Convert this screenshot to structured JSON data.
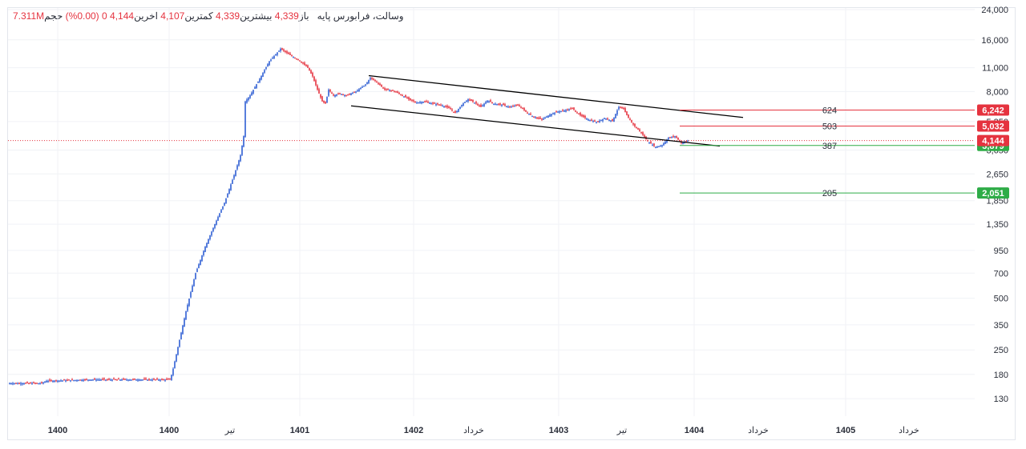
{
  "header": {
    "symbol": "وسالت، فرابورس پایه",
    "open_label": "باز",
    "open_value": "4,339",
    "high_label": "بیشترین",
    "high_value": "4,339",
    "low_label": "کمترین",
    "low_value": "4,107",
    "close_label": "اخرین",
    "close_value": "4,144",
    "change_value": "0 (0.00%)",
    "volume_label": "حجم",
    "volume_value": "7.311M"
  },
  "colors": {
    "up": "#2f5fd3",
    "down": "#e5333f",
    "resistance": "#e5333f",
    "support": "#2eac47",
    "channel": "#000000",
    "last_price_line": "#e5333f"
  },
  "chart_data": {
    "type": "candlestick",
    "y_scale": "log",
    "ylim": [
      105,
      24000
    ],
    "y_ticks": [
      130,
      180,
      250,
      350,
      500,
      700,
      950,
      1350,
      1850,
      2650,
      3650,
      5350,
      8000,
      11000,
      16000,
      24000
    ],
    "y_tick_labels": [
      "130",
      "180",
      "250",
      "350",
      "500",
      "700",
      "950",
      "1,350",
      "1,850",
      "2,650",
      "3,650",
      "5,350",
      "8,000",
      "11,000",
      "16,000",
      "24,000"
    ],
    "x_labels": [
      "1400",
      "1400",
      "تیر",
      "1401",
      "1402",
      "خرداد",
      "1403",
      "تیر",
      "1404",
      "خرداد",
      "1405",
      "خرداد"
    ],
    "x_label_bold": [
      true,
      true,
      false,
      true,
      true,
      false,
      true,
      false,
      true,
      false,
      true,
      false
    ],
    "price_path": [
      [
        0,
        160
      ],
      [
        40,
        160
      ],
      [
        46,
        165
      ],
      [
        100,
        168
      ],
      [
        200,
        168
      ],
      [
        203,
        185
      ],
      [
        210,
        260
      ],
      [
        220,
        420
      ],
      [
        232,
        700
      ],
      [
        244,
        1000
      ],
      [
        256,
        1350
      ],
      [
        268,
        1800
      ],
      [
        280,
        2600
      ],
      [
        288,
        3400
      ],
      [
        292,
        4400
      ],
      [
        294,
        7000
      ],
      [
        300,
        7600
      ],
      [
        312,
        9500
      ],
      [
        324,
        12000
      ],
      [
        334,
        13500
      ],
      [
        338,
        14200
      ],
      [
        348,
        13200
      ],
      [
        360,
        12300
      ],
      [
        372,
        11000
      ],
      [
        378,
        9800
      ],
      [
        384,
        8200
      ],
      [
        390,
        7000
      ],
      [
        394,
        6800
      ],
      [
        398,
        8200
      ],
      [
        404,
        7600
      ],
      [
        412,
        7800
      ],
      [
        420,
        7600
      ],
      [
        432,
        8000
      ],
      [
        444,
        8800
      ],
      [
        450,
        9600
      ],
      [
        458,
        9100
      ],
      [
        468,
        8200
      ],
      [
        478,
        8100
      ],
      [
        488,
        7700
      ],
      [
        498,
        7200
      ],
      [
        508,
        6900
      ],
      [
        518,
        7000
      ],
      [
        528,
        6800
      ],
      [
        538,
        6700
      ],
      [
        548,
        6400
      ],
      [
        556,
        6000
      ],
      [
        564,
        6700
      ],
      [
        572,
        7200
      ],
      [
        580,
        6900
      ],
      [
        588,
        6500
      ],
      [
        596,
        7100
      ],
      [
        604,
        6800
      ],
      [
        614,
        6700
      ],
      [
        624,
        6500
      ],
      [
        634,
        6700
      ],
      [
        644,
        6100
      ],
      [
        654,
        5700
      ],
      [
        664,
        5500
      ],
      [
        672,
        5800
      ],
      [
        682,
        6100
      ],
      [
        692,
        6200
      ],
      [
        702,
        6400
      ],
      [
        712,
        5800
      ],
      [
        722,
        5500
      ],
      [
        732,
        5300
      ],
      [
        742,
        5600
      ],
      [
        752,
        5400
      ],
      [
        760,
        6500
      ],
      [
        766,
        6300
      ],
      [
        772,
        5600
      ],
      [
        780,
        5000
      ],
      [
        788,
        4600
      ],
      [
        796,
        4100
      ],
      [
        806,
        3800
      ],
      [
        814,
        3900
      ],
      [
        822,
        4300
      ],
      [
        830,
        4400
      ],
      [
        838,
        4000
      ],
      [
        846,
        4144
      ]
    ],
    "channel_lines": [
      {
        "from": [
          448,
          9900
        ],
        "to": [
          915,
          5650
        ]
      },
      {
        "from": [
          426,
          6600
        ],
        "to": [
          886,
          3850
        ]
      }
    ],
    "levels": [
      {
        "name": "624",
        "price_label": "6,242",
        "value": 6242,
        "kind": "resistance"
      },
      {
        "name": "503",
        "price_label": "5,032",
        "value": 5032,
        "kind": "resistance"
      },
      {
        "name": "387",
        "price_label": "3,879",
        "value": 3879,
        "kind": "support"
      },
      {
        "name": "205",
        "price_label": "2,051",
        "value": 2051,
        "kind": "support"
      }
    ],
    "last_price": {
      "value": 4144,
      "label": "4,144"
    }
  }
}
